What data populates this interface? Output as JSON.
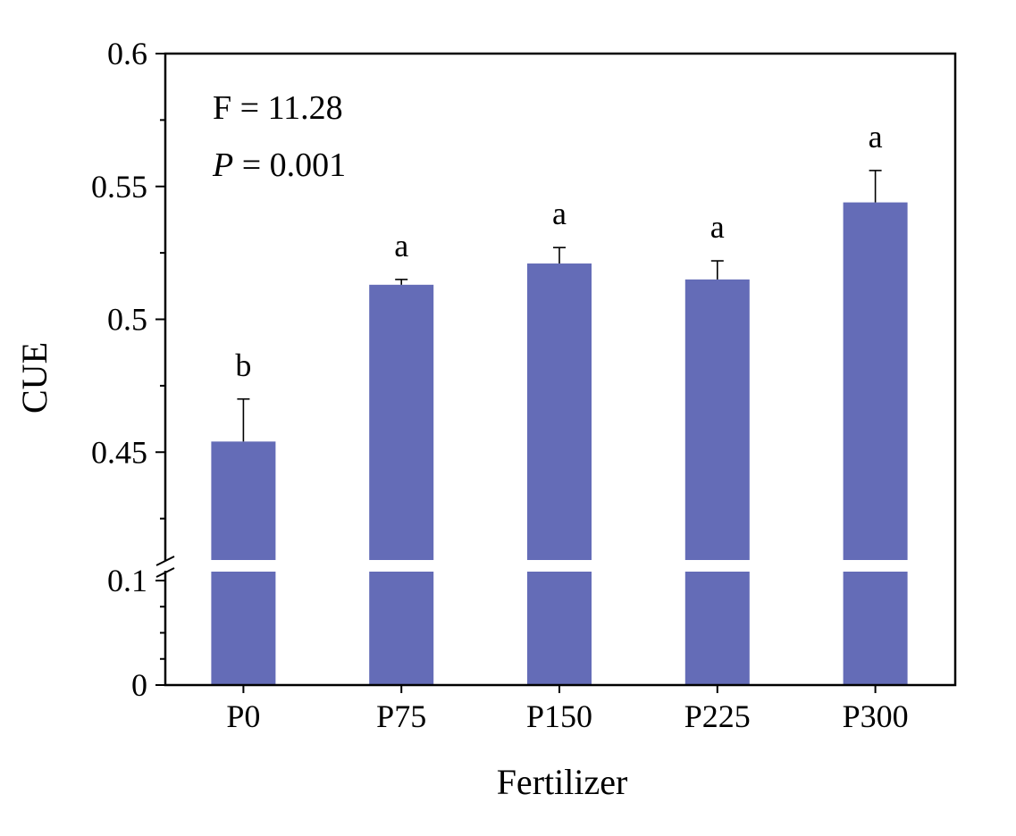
{
  "chart_data": {
    "type": "bar",
    "title": "",
    "xlabel": "Fertilizer",
    "ylabel": "CUE",
    "categories": [
      "P0",
      "P75",
      "P150",
      "P225",
      "P300"
    ],
    "values": [
      0.454,
      0.513,
      0.521,
      0.515,
      0.544
    ],
    "errors": [
      0.016,
      0.002,
      0.006,
      0.007,
      0.012
    ],
    "significance_letters": [
      "b",
      "a",
      "a",
      "a",
      "a"
    ],
    "y_axis_broken": true,
    "y_lower_segment": {
      "range": [
        0,
        0.1
      ],
      "ticks": [
        0,
        0.1
      ],
      "tick_labels": [
        "0",
        "0.1"
      ]
    },
    "y_upper_segment": {
      "range": [
        0.4,
        0.6
      ],
      "ticks": [
        0.45,
        0.5,
        0.55,
        0.6
      ],
      "tick_labels": [
        "0.45",
        "0.5",
        "0.55",
        "0.6"
      ]
    },
    "annotations": {
      "f_stat": "F = 11.28",
      "p_label": "P",
      "p_value_text": " = 0.001"
    },
    "bar_color": "#646cb7",
    "grid": false
  }
}
